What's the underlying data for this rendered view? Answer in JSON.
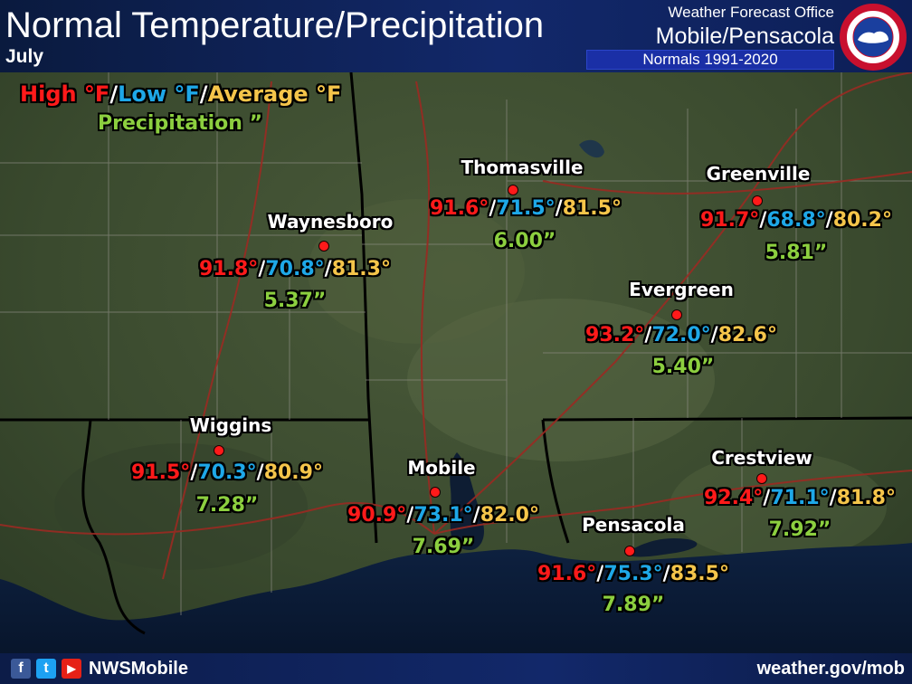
{
  "header": {
    "title": "Normal Temperature/Precipitation",
    "month": "July",
    "office_label": "Weather Forecast Office",
    "office_name": "Mobile/Pensacola",
    "normals_period": "Normals 1991-2020"
  },
  "logo": {
    "icon": "nws-logo-icon"
  },
  "legend": {
    "high": "High °F",
    "low": "Low °F",
    "average": "Average °F",
    "separator": "/",
    "precipitation": "Precipitation ”"
  },
  "colors": {
    "high": "#ff1a1a",
    "low": "#1ea8e8",
    "average": "#f5c54a",
    "precip": "#8ccf3f",
    "header_bg": "#12286a"
  },
  "cities": [
    {
      "name": "Thomasville",
      "high": "91.6°",
      "low": "71.5°",
      "avg": "81.5°",
      "precip": "6.00”"
    },
    {
      "name": "Greenville",
      "high": "91.7°",
      "low": "68.8°",
      "avg": "80.2°",
      "precip": "5.81”"
    },
    {
      "name": "Waynesboro",
      "high": "91.8°",
      "low": "70.8°",
      "avg": "81.3°",
      "precip": "5.37”"
    },
    {
      "name": "Evergreen",
      "high": "93.2°",
      "low": "72.0°",
      "avg": "82.6°",
      "precip": "5.40”"
    },
    {
      "name": "Wiggins",
      "high": "91.5°",
      "low": "70.3°",
      "avg": "80.9°",
      "precip": "7.28”"
    },
    {
      "name": "Mobile",
      "high": "90.9°",
      "low": "73.1°",
      "avg": "82.0°",
      "precip": "7.69”"
    },
    {
      "name": "Crestview",
      "high": "92.4°",
      "low": "71.1°",
      "avg": "81.8°",
      "precip": "7.92”"
    },
    {
      "name": "Pensacola",
      "high": "91.6°",
      "low": "75.3°",
      "avg": "83.5°",
      "precip": "7.89”"
    }
  ],
  "footer": {
    "social_handle": "NWSMobile",
    "website": "weather.gov/mob",
    "facebook_glyph": "f",
    "twitter_glyph": "t",
    "youtube_glyph": "▶"
  }
}
